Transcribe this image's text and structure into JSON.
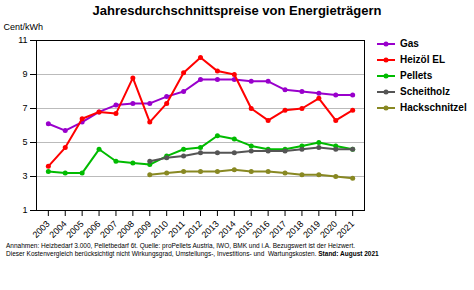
{
  "chart_data": {
    "type": "line",
    "title": "Jahresdurchschnittspreise von Energieträgern",
    "ylabel": "Cent/kWh",
    "x": [
      2003,
      2004,
      2005,
      2006,
      2007,
      2008,
      2009,
      2010,
      2011,
      2012,
      2013,
      2014,
      2015,
      2016,
      2017,
      2018,
      2019,
      2020,
      2021
    ],
    "xlim": [
      2002.3,
      2021.7
    ],
    "xticks": [
      2003,
      2004,
      2005,
      2006,
      2007,
      2008,
      2009,
      2010,
      2011,
      2012,
      2013,
      2014,
      2015,
      2016,
      2017,
      2018,
      2019,
      2020,
      2021
    ],
    "ylim": [
      1,
      11
    ],
    "yticks": [
      1,
      3,
      5,
      7,
      9,
      11
    ],
    "grid": true,
    "legend": "right",
    "marker": "o",
    "series": [
      {
        "name": "Gas",
        "color": "#9900CC",
        "values": [
          6.1,
          5.7,
          6.2,
          6.8,
          7.2,
          7.3,
          7.3,
          7.7,
          8.0,
          8.7,
          8.7,
          8.7,
          8.6,
          8.6,
          8.1,
          8.0,
          7.9,
          7.8,
          7.8
        ]
      },
      {
        "name": "Heizöl EL",
        "color": "#FF0000",
        "values": [
          3.6,
          4.7,
          6.4,
          6.8,
          6.7,
          8.8,
          6.2,
          7.3,
          9.1,
          10.0,
          9.2,
          9.0,
          7.0,
          6.3,
          6.9,
          7.0,
          7.6,
          6.3,
          6.9
        ]
      },
      {
        "name": "Pellets",
        "color": "#00BB00",
        "values": [
          3.3,
          3.2,
          3.2,
          4.6,
          3.9,
          3.8,
          3.7,
          4.2,
          4.6,
          4.7,
          5.4,
          5.2,
          4.8,
          4.6,
          4.6,
          4.8,
          5.0,
          4.8,
          4.6
        ]
      },
      {
        "name": "Scheitholz",
        "color": "#555555",
        "values": [
          null,
          null,
          null,
          null,
          null,
          null,
          3.9,
          4.1,
          4.2,
          4.4,
          4.4,
          4.4,
          4.5,
          4.5,
          4.5,
          4.6,
          4.7,
          4.6,
          4.6
        ]
      },
      {
        "name": "Hackschnitzel",
        "color": "#888822",
        "values": [
          null,
          null,
          null,
          null,
          null,
          null,
          3.1,
          3.2,
          3.3,
          3.3,
          3.3,
          3.4,
          3.3,
          3.3,
          3.2,
          3.1,
          3.1,
          3.0,
          2.9
        ]
      }
    ],
    "annotations": [
      "Annahmen: Heizbedarf 3.000, Pelletbedarf 6t. Quelle: proPellets Austria, IWO, BMK und i.A. Bezugswert ist der Heizwert.",
      "Dieser Kostenvergleich berücksichtigt nicht Wirkungsgrad, Umstellungs-, Investitions- und  Wartungskosten.",
      "Stand: August 2021"
    ]
  }
}
